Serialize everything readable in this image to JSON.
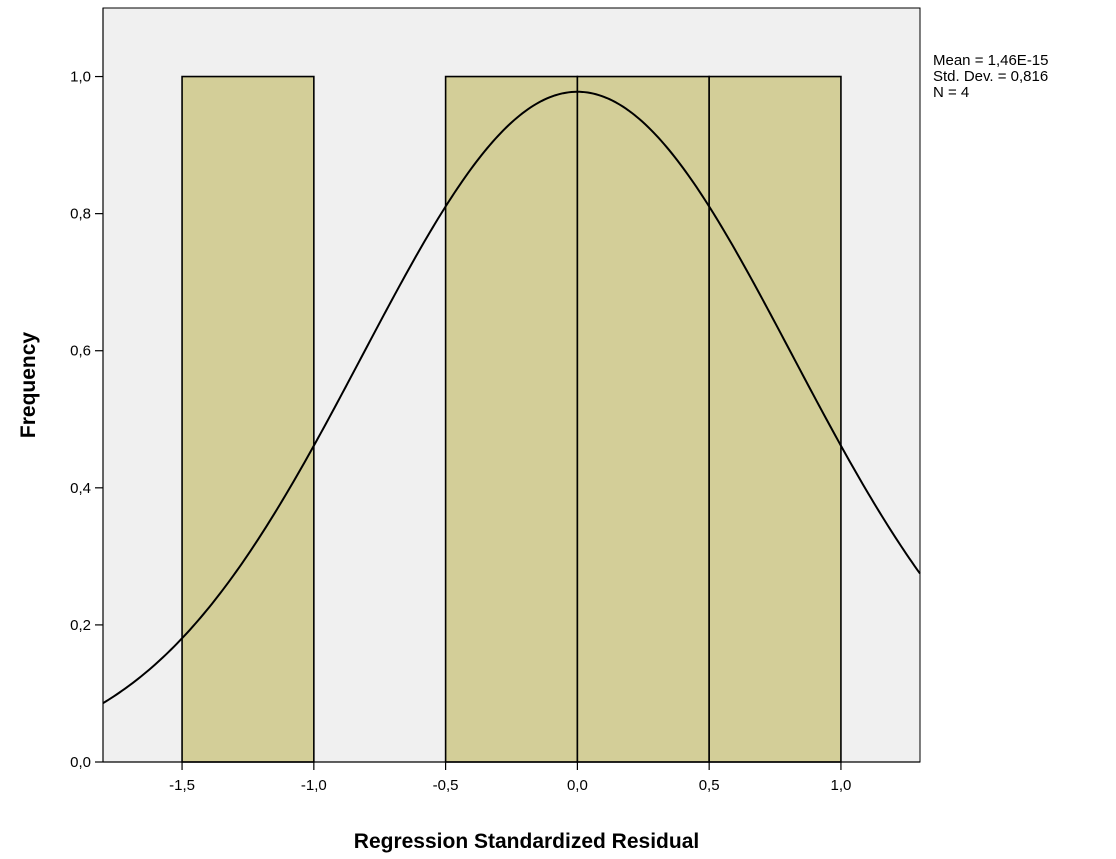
{
  "chart_data": {
    "type": "bar",
    "subtype": "histogram",
    "xlabel": "Regression Standardized Residual",
    "ylabel": "Frequency",
    "xlim": [
      -1.8,
      1.3
    ],
    "ylim": [
      0,
      1.1
    ],
    "x_ticks": [
      -1.5,
      -1.0,
      -0.5,
      0.0,
      0.5,
      1.0
    ],
    "x_tick_labels": [
      "-1,5",
      "-1,0",
      "-0,5",
      "0,0",
      "0,5",
      "1,0"
    ],
    "y_ticks": [
      0,
      0.2,
      0.4,
      0.6,
      0.8,
      1.0
    ],
    "y_tick_labels": [
      "0,0",
      "0,2",
      "0,4",
      "0,6",
      "0,8",
      "1,0"
    ],
    "bins": [
      {
        "from": -1.5,
        "to": -1.0,
        "frequency": 1
      },
      {
        "from": -1.0,
        "to": -0.5,
        "frequency": 0
      },
      {
        "from": -0.5,
        "to": 0.0,
        "frequency": 1
      },
      {
        "from": 0.0,
        "to": 0.5,
        "frequency": 1
      },
      {
        "from": 0.5,
        "to": 1.0,
        "frequency": 1
      }
    ],
    "normal_curve": {
      "mean": 0.0,
      "std_dev": 0.816,
      "n": 4,
      "bin_width": 0.5
    },
    "stats_lines": [
      "Mean = 1,46E-15",
      "Std. Dev. = 0,816",
      "N = 4"
    ],
    "grid": false,
    "legend_position": "top-right",
    "colors": {
      "plot_background": "#f0f0f0",
      "bar_fill": "#d3ce98",
      "bar_stroke": "#000000",
      "curve": "#000000"
    }
  }
}
